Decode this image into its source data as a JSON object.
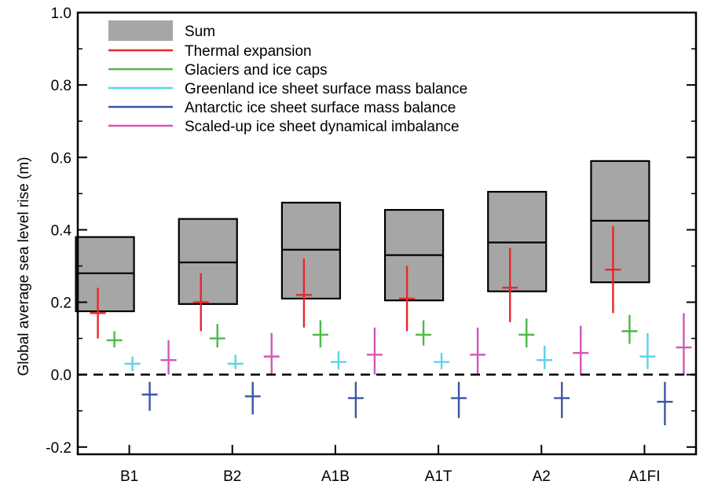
{
  "chart_data": {
    "type": "box-errorbar",
    "title": "",
    "xlabel": "",
    "ylabel": "Global average sea level rise (m)",
    "ylim": [
      -0.22,
      1.0
    ],
    "yticks": [
      -0.2,
      0.0,
      0.2,
      0.4,
      0.6,
      0.8,
      1.0
    ],
    "ytick_labels": [
      "-0.2",
      "0.0",
      "0.2",
      "0.4",
      "0.6",
      "0.8",
      "1.0"
    ],
    "zero_line": "dashed",
    "legend_position": "top-left",
    "categories": [
      "B1",
      "B2",
      "A1B",
      "A1T",
      "A2",
      "A1FI"
    ],
    "sum": {
      "name": "Sum",
      "color": "#a6a6a6",
      "low": [
        0.175,
        0.195,
        0.21,
        0.205,
        0.23,
        0.255
      ],
      "mid": [
        0.28,
        0.31,
        0.345,
        0.33,
        0.365,
        0.425
      ],
      "high": [
        0.38,
        0.43,
        0.475,
        0.455,
        0.505,
        0.59
      ]
    },
    "series": [
      {
        "name": "Thermal expansion",
        "color": "#e8262a",
        "mid": [
          0.17,
          0.2,
          0.22,
          0.21,
          0.24,
          0.29
        ],
        "low": [
          0.1,
          0.12,
          0.13,
          0.12,
          0.145,
          0.17
        ],
        "high": [
          0.24,
          0.28,
          0.32,
          0.3,
          0.35,
          0.41
        ]
      },
      {
        "name": "Glaciers and ice caps",
        "color": "#4db848",
        "mid": [
          0.095,
          0.1,
          0.11,
          0.11,
          0.11,
          0.12
        ],
        "low": [
          0.075,
          0.075,
          0.075,
          0.08,
          0.075,
          0.085
        ],
        "high": [
          0.12,
          0.14,
          0.15,
          0.15,
          0.155,
          0.165
        ]
      },
      {
        "name": "Greenland ice sheet surface mass balance",
        "color": "#5cd3e8",
        "mid": [
          0.03,
          0.03,
          0.035,
          0.035,
          0.04,
          0.05
        ],
        "low": [
          0.01,
          0.015,
          0.015,
          0.015,
          0.015,
          0.015
        ],
        "high": [
          0.05,
          0.055,
          0.065,
          0.06,
          0.08,
          0.115
        ]
      },
      {
        "name": "Antarctic ice sheet surface mass balance",
        "color": "#3a55a8",
        "mid": [
          -0.055,
          -0.06,
          -0.065,
          -0.065,
          -0.065,
          -0.075
        ],
        "low": [
          -0.1,
          -0.11,
          -0.12,
          -0.12,
          -0.12,
          -0.14
        ],
        "high": [
          -0.02,
          -0.02,
          -0.02,
          -0.02,
          -0.02,
          -0.02
        ]
      },
      {
        "name": "Scaled-up ice sheet dynamical imbalance",
        "color": "#d456b8",
        "mid": [
          0.04,
          0.05,
          0.055,
          0.055,
          0.06,
          0.075
        ],
        "low": [
          0.0,
          0.0,
          0.0,
          0.0,
          0.0,
          0.0
        ],
        "high": [
          0.095,
          0.115,
          0.13,
          0.13,
          0.135,
          0.17
        ]
      }
    ]
  }
}
